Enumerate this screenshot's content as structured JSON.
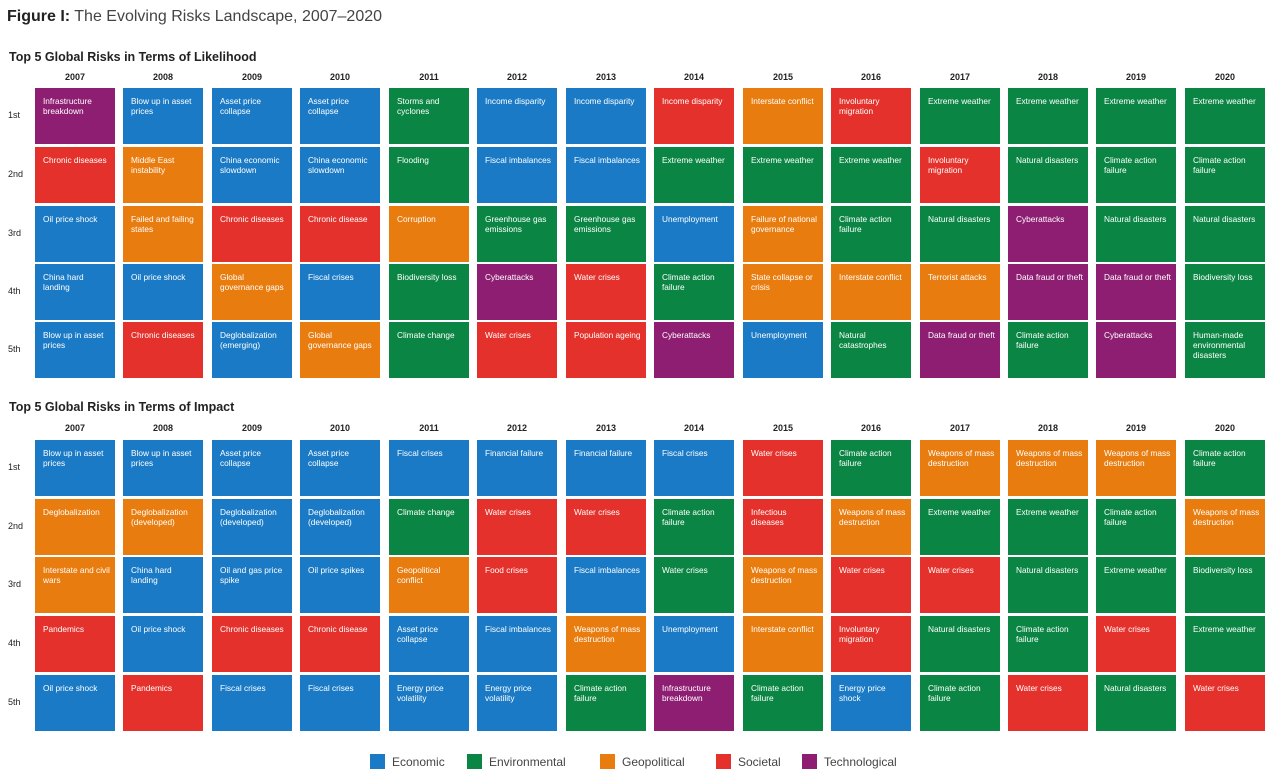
{
  "figure": {
    "label": "Figure I:",
    "title": " The Evolving Risks Landscape, 2007–2020"
  },
  "legend": [
    {
      "name": "Economic",
      "color": "#1a7ac5"
    },
    {
      "name": "Environmental",
      "color": "#0b8543"
    },
    {
      "name": "Geopolitical",
      "color": "#e97c0f"
    },
    {
      "name": "Societal",
      "color": "#e4312b"
    },
    {
      "name": "Technological",
      "color": "#8e1e72"
    }
  ],
  "chart_data": [
    {
      "type": "table",
      "title": "Top 5 Global Risks in Terms of Likelihood",
      "years": [
        "2007",
        "2008",
        "2009",
        "2010",
        "2011",
        "2012",
        "2013",
        "2014",
        "2015",
        "2016",
        "2017",
        "2018",
        "2019",
        "2020"
      ],
      "ranks": [
        "1st",
        "2nd",
        "3rd",
        "4th",
        "5th"
      ],
      "columns": [
        [
          [
            "Infrastructure breakdown",
            "Technological"
          ],
          [
            "Chronic diseases",
            "Societal"
          ],
          [
            "Oil price shock",
            "Economic"
          ],
          [
            "China hard landing",
            "Economic"
          ],
          [
            "Blow up in asset prices",
            "Economic"
          ]
        ],
        [
          [
            "Blow up in asset prices",
            "Economic"
          ],
          [
            "Middle East instability",
            "Geopolitical"
          ],
          [
            "Failed and failing states",
            "Geopolitical"
          ],
          [
            "Oil price shock",
            "Economic"
          ],
          [
            "Chronic diseases",
            "Societal"
          ]
        ],
        [
          [
            "Asset price collapse",
            "Economic"
          ],
          [
            "China economic slowdown",
            "Economic"
          ],
          [
            "Chronic diseases",
            "Societal"
          ],
          [
            "Global governance gaps",
            "Geopolitical"
          ],
          [
            "Deglobalization (emerging)",
            "Economic"
          ]
        ],
        [
          [
            "Asset price collapse",
            "Economic"
          ],
          [
            "China economic slowdown",
            "Economic"
          ],
          [
            "Chronic disease",
            "Societal"
          ],
          [
            "Fiscal crises",
            "Economic"
          ],
          [
            "Global governance gaps",
            "Geopolitical"
          ]
        ],
        [
          [
            "Storms and cyclones",
            "Environmental"
          ],
          [
            "Flooding",
            "Environmental"
          ],
          [
            "Corruption",
            "Geopolitical"
          ],
          [
            "Biodiversity loss",
            "Environmental"
          ],
          [
            "Climate change",
            "Environmental"
          ]
        ],
        [
          [
            "Income disparity",
            "Economic"
          ],
          [
            "Fiscal imbalances",
            "Economic"
          ],
          [
            "Greenhouse gas emissions",
            "Environmental"
          ],
          [
            "Cyberattacks",
            "Technological"
          ],
          [
            "Water crises",
            "Societal"
          ]
        ],
        [
          [
            "Income disparity",
            "Economic"
          ],
          [
            "Fiscal imbalances",
            "Economic"
          ],
          [
            "Greenhouse gas emissions",
            "Environmental"
          ],
          [
            "Water crises",
            "Societal"
          ],
          [
            "Population ageing",
            "Societal"
          ]
        ],
        [
          [
            "Income disparity",
            "Societal"
          ],
          [
            "Extreme weather",
            "Environmental"
          ],
          [
            "Unemployment",
            "Economic"
          ],
          [
            "Climate action failure",
            "Environmental"
          ],
          [
            "Cyberattacks",
            "Technological"
          ]
        ],
        [
          [
            "Interstate conflict",
            "Geopolitical"
          ],
          [
            "Extreme weather",
            "Environmental"
          ],
          [
            "Failure of national governance",
            "Geopolitical"
          ],
          [
            "State collapse or crisis",
            "Geopolitical"
          ],
          [
            "Unemployment",
            "Economic"
          ]
        ],
        [
          [
            "Involuntary migration",
            "Societal"
          ],
          [
            "Extreme weather",
            "Environmental"
          ],
          [
            "Climate action failure",
            "Environmental"
          ],
          [
            "Interstate conflict",
            "Geopolitical"
          ],
          [
            "Natural catastrophes",
            "Environmental"
          ]
        ],
        [
          [
            "Extreme weather",
            "Environmental"
          ],
          [
            "Involuntary migration",
            "Societal"
          ],
          [
            "Natural disasters",
            "Environmental"
          ],
          [
            "Terrorist attacks",
            "Geopolitical"
          ],
          [
            "Data fraud or theft",
            "Technological"
          ]
        ],
        [
          [
            "Extreme weather",
            "Environmental"
          ],
          [
            "Natural disasters",
            "Environmental"
          ],
          [
            "Cyberattacks",
            "Technological"
          ],
          [
            "Data fraud or theft",
            "Technological"
          ],
          [
            "Climate action failure",
            "Environmental"
          ]
        ],
        [
          [
            "Extreme weather",
            "Environmental"
          ],
          [
            "Climate action failure",
            "Environmental"
          ],
          [
            "Natural disasters",
            "Environmental"
          ],
          [
            "Data fraud or theft",
            "Technological"
          ],
          [
            "Cyberattacks",
            "Technological"
          ]
        ],
        [
          [
            "Extreme weather",
            "Environmental"
          ],
          [
            "Climate action failure",
            "Environmental"
          ],
          [
            "Natural disasters",
            "Environmental"
          ],
          [
            "Biodiversity loss",
            "Environmental"
          ],
          [
            "Human-made environmental disasters",
            "Environmental"
          ]
        ]
      ]
    },
    {
      "type": "table",
      "title": "Top 5 Global Risks in Terms of Impact",
      "years": [
        "2007",
        "2008",
        "2009",
        "2010",
        "2011",
        "2012",
        "2013",
        "2014",
        "2015",
        "2016",
        "2017",
        "2018",
        "2019",
        "2020"
      ],
      "ranks": [
        "1st",
        "2nd",
        "3rd",
        "4th",
        "5th"
      ],
      "columns": [
        [
          [
            "Blow up in asset prices",
            "Economic"
          ],
          [
            "Deglobalization",
            "Geopolitical"
          ],
          [
            "Interstate and civil wars",
            "Geopolitical"
          ],
          [
            "Pandemics",
            "Societal"
          ],
          [
            "Oil price shock",
            "Economic"
          ]
        ],
        [
          [
            "Blow up in asset prices",
            "Economic"
          ],
          [
            "Deglobalization (developed)",
            "Geopolitical"
          ],
          [
            "China hard landing",
            "Economic"
          ],
          [
            "Oil price shock",
            "Economic"
          ],
          [
            "Pandemics",
            "Societal"
          ]
        ],
        [
          [
            "Asset price collapse",
            "Economic"
          ],
          [
            "Deglobalization (developed)",
            "Economic"
          ],
          [
            "Oil and gas price spike",
            "Economic"
          ],
          [
            "Chronic diseases",
            "Societal"
          ],
          [
            "Fiscal crises",
            "Economic"
          ]
        ],
        [
          [
            "Asset price collapse",
            "Economic"
          ],
          [
            "Deglobalization (developed)",
            "Economic"
          ],
          [
            "Oil price spikes",
            "Economic"
          ],
          [
            "Chronic disease",
            "Societal"
          ],
          [
            "Fiscal crises",
            "Economic"
          ]
        ],
        [
          [
            "Fiscal crises",
            "Economic"
          ],
          [
            "Climate change",
            "Environmental"
          ],
          [
            "Geopolitical conflict",
            "Geopolitical"
          ],
          [
            "Asset price collapse",
            "Economic"
          ],
          [
            "Energy price volatility",
            "Economic"
          ]
        ],
        [
          [
            "Financial failure",
            "Economic"
          ],
          [
            "Water crises",
            "Societal"
          ],
          [
            "Food crises",
            "Societal"
          ],
          [
            "Fiscal imbalances",
            "Economic"
          ],
          [
            "Energy price volatility",
            "Economic"
          ]
        ],
        [
          [
            "Financial failure",
            "Economic"
          ],
          [
            "Water crises",
            "Societal"
          ],
          [
            "Fiscal imbalances",
            "Economic"
          ],
          [
            "Weapons of mass destruction",
            "Geopolitical"
          ],
          [
            "Climate action failure",
            "Environmental"
          ]
        ],
        [
          [
            "Fiscal crises",
            "Economic"
          ],
          [
            "Climate action failure",
            "Environmental"
          ],
          [
            "Water crises",
            "Environmental"
          ],
          [
            "Unemployment",
            "Economic"
          ],
          [
            "Infrastructure breakdown",
            "Technological"
          ]
        ],
        [
          [
            "Water crises",
            "Societal"
          ],
          [
            "Infectious diseases",
            "Societal"
          ],
          [
            "Weapons of mass destruction",
            "Geopolitical"
          ],
          [
            "Interstate conflict",
            "Geopolitical"
          ],
          [
            "Climate action failure",
            "Environmental"
          ]
        ],
        [
          [
            "Climate action failure",
            "Environmental"
          ],
          [
            "Weapons of mass destruction",
            "Geopolitical"
          ],
          [
            "Water crises",
            "Societal"
          ],
          [
            "Involuntary migration",
            "Societal"
          ],
          [
            "Energy price shock",
            "Economic"
          ]
        ],
        [
          [
            "Weapons of mass destruction",
            "Geopolitical"
          ],
          [
            "Extreme weather",
            "Environmental"
          ],
          [
            "Water crises",
            "Societal"
          ],
          [
            "Natural disasters",
            "Environmental"
          ],
          [
            "Climate action failure",
            "Environmental"
          ]
        ],
        [
          [
            "Weapons of mass destruction",
            "Geopolitical"
          ],
          [
            "Extreme weather",
            "Environmental"
          ],
          [
            "Natural disasters",
            "Environmental"
          ],
          [
            "Climate action failure",
            "Environmental"
          ],
          [
            "Water crises",
            "Societal"
          ]
        ],
        [
          [
            "Weapons of mass destruction",
            "Geopolitical"
          ],
          [
            "Climate action failure",
            "Environmental"
          ],
          [
            "Extreme weather",
            "Environmental"
          ],
          [
            "Water crises",
            "Societal"
          ],
          [
            "Natural disasters",
            "Environmental"
          ]
        ],
        [
          [
            "Climate action failure",
            "Environmental"
          ],
          [
            "Weapons of mass destruction",
            "Geopolitical"
          ],
          [
            "Biodiversity loss",
            "Environmental"
          ],
          [
            "Extreme weather",
            "Environmental"
          ],
          [
            "Water crises",
            "Societal"
          ]
        ]
      ]
    }
  ]
}
